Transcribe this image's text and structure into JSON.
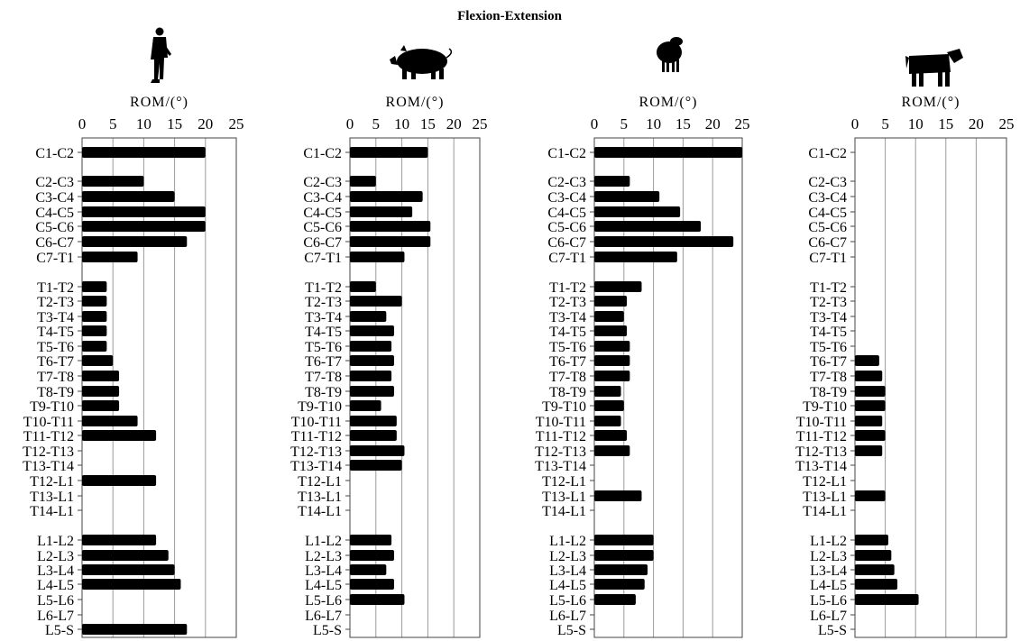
{
  "title": "Flexion-Extension",
  "colors": {
    "bar": "#000000",
    "grid": "#9a9a9a",
    "frame": "#444444",
    "background": "#ffffff"
  },
  "chart_data": [
    {
      "type": "bar",
      "orientation": "horizontal",
      "icon": "human-silhouette-icon",
      "xlabel": "ROM/(°)",
      "xlim": [
        0,
        25
      ],
      "xticks": [
        0,
        5,
        10,
        15,
        20,
        25
      ],
      "grid": true,
      "categories": [
        "C1-C2",
        "C2-C3",
        "C3-C4",
        "C4-C5",
        "C5-C6",
        "C6-C7",
        "C7-T1",
        "T1-T2",
        "T2-T3",
        "T3-T4",
        "T4-T5",
        "T5-T6",
        "T6-T7",
        "T7-T8",
        "T8-T9",
        "T9-T10",
        "T10-T11",
        "T11-T12",
        "T12-T13",
        "T13-T14",
        "T12-L1",
        "T13-L1",
        "T14-L1",
        "L1-L2",
        "L2-L3",
        "L3-L4",
        "L4-L5",
        "L5-L6",
        "L6-L7",
        "L5-S"
      ],
      "values": [
        20,
        10,
        15,
        20,
        20,
        17,
        9,
        4,
        4,
        4,
        4,
        4,
        5,
        6,
        6,
        6,
        9,
        12,
        null,
        null,
        12,
        null,
        null,
        12,
        14,
        15,
        16,
        null,
        null,
        17
      ]
    },
    {
      "type": "bar",
      "orientation": "horizontal",
      "icon": "pig-silhouette-icon",
      "xlabel": "ROM/(°)",
      "xlim": [
        0,
        25
      ],
      "xticks": [
        0,
        5,
        10,
        15,
        20,
        25
      ],
      "grid": true,
      "categories": [
        "C1-C2",
        "C2-C3",
        "C3-C4",
        "C4-C5",
        "C5-C6",
        "C6-C7",
        "C7-T1",
        "T1-T2",
        "T2-T3",
        "T3-T4",
        "T4-T5",
        "T5-T6",
        "T6-T7",
        "T7-T8",
        "T8-T9",
        "T9-T10",
        "T10-T11",
        "T11-T12",
        "T12-T13",
        "T13-T14",
        "T12-L1",
        "T13-L1",
        "T14-L1",
        "L1-L2",
        "L2-L3",
        "L3-L4",
        "L4-L5",
        "L5-L6",
        "L6-L7",
        "L5-S"
      ],
      "values": [
        15,
        5,
        14,
        12,
        15.5,
        15.5,
        10.5,
        5,
        10,
        7,
        8.5,
        8,
        8.5,
        8,
        8.5,
        6,
        9,
        9,
        10.5,
        10,
        null,
        null,
        null,
        8,
        8.5,
        7,
        8.5,
        10.5,
        null,
        null
      ]
    },
    {
      "type": "bar",
      "orientation": "horizontal",
      "icon": "sheep-silhouette-icon",
      "xlabel": "ROM/(°)",
      "xlim": [
        0,
        25
      ],
      "xticks": [
        0,
        5,
        10,
        15,
        20,
        25
      ],
      "grid": true,
      "categories": [
        "C1-C2",
        "C2-C3",
        "C3-C4",
        "C4-C5",
        "C5-C6",
        "C6-C7",
        "C7-T1",
        "T1-T2",
        "T2-T3",
        "T3-T4",
        "T4-T5",
        "T5-T6",
        "T6-T7",
        "T7-T8",
        "T8-T9",
        "T9-T10",
        "T10-T11",
        "T11-T12",
        "T12-T13",
        "T13-T14",
        "T12-L1",
        "T13-L1",
        "T14-L1",
        "L1-L2",
        "L2-L3",
        "L3-L4",
        "L4-L5",
        "L5-L6",
        "L6-L7",
        "L5-S"
      ],
      "values": [
        25,
        6,
        11,
        14.5,
        18,
        23.5,
        14,
        8,
        5.5,
        5,
        5.5,
        6,
        6,
        6,
        4.5,
        5,
        4.5,
        5.5,
        6,
        null,
        null,
        8,
        null,
        10,
        10,
        9,
        8.5,
        7,
        null,
        null
      ]
    },
    {
      "type": "bar",
      "orientation": "horizontal",
      "icon": "cow-silhouette-icon",
      "xlabel": "ROM/(°)",
      "xlim": [
        0,
        25
      ],
      "xticks": [
        0,
        5,
        10,
        15,
        20,
        25
      ],
      "grid": true,
      "categories": [
        "C1-C2",
        "C2-C3",
        "C3-C4",
        "C4-C5",
        "C5-C6",
        "C6-C7",
        "C7-T1",
        "T1-T2",
        "T2-T3",
        "T3-T4",
        "T4-T5",
        "T5-T6",
        "T6-T7",
        "T7-T8",
        "T8-T9",
        "T9-T10",
        "T10-T11",
        "T11-T12",
        "T12-T13",
        "T13-T14",
        "T12-L1",
        "T13-L1",
        "T14-L1",
        "L1-L2",
        "L2-L3",
        "L3-L4",
        "L4-L5",
        "L5-L6",
        "L6-L7",
        "L5-S"
      ],
      "values": [
        null,
        null,
        null,
        null,
        null,
        null,
        null,
        null,
        null,
        null,
        null,
        null,
        4,
        4.5,
        5,
        5,
        4.5,
        5,
        4.5,
        null,
        null,
        5,
        null,
        5.5,
        6,
        6.5,
        7,
        10.5,
        null,
        null
      ]
    }
  ]
}
